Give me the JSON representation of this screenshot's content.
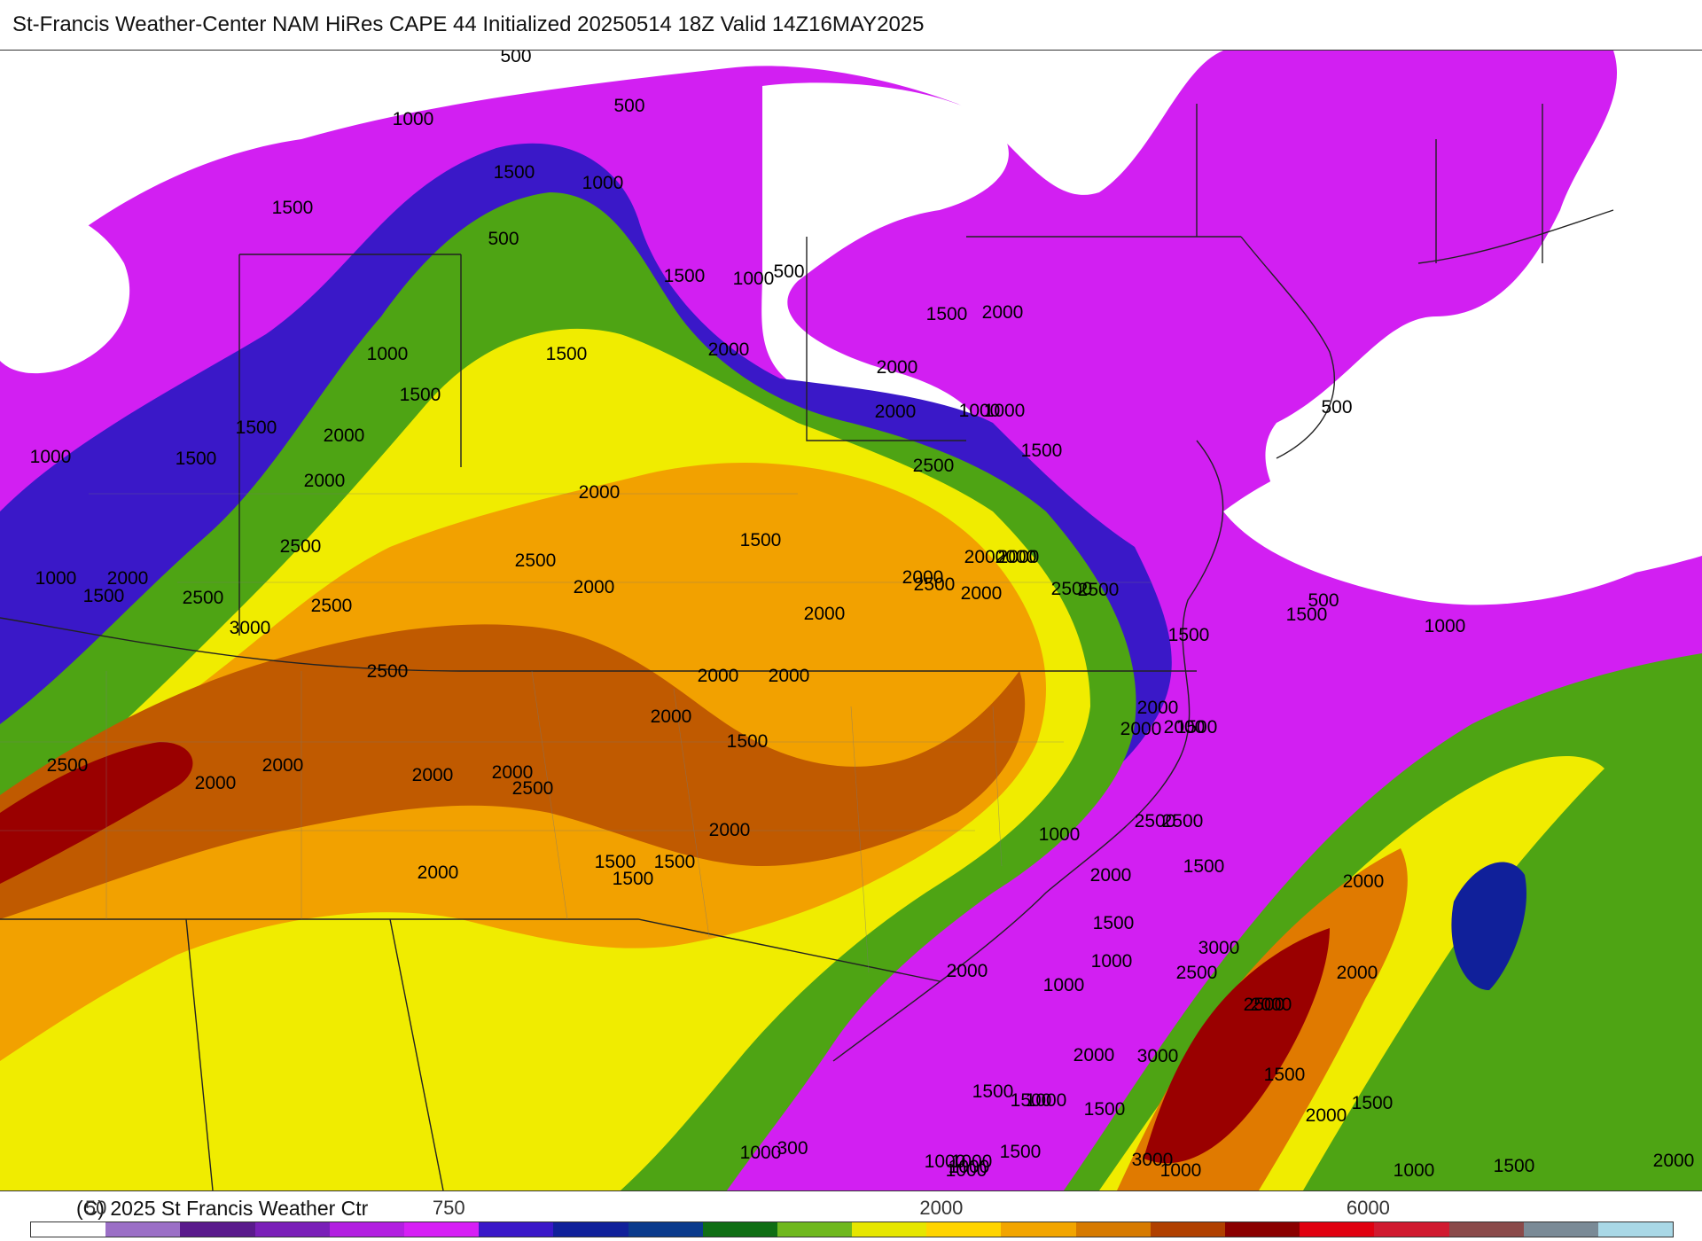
{
  "title": "St-Francis Weather-Center NAM HiRes CAPE  44 Initialized 20250514 18Z Valid 14Z16MAY2025",
  "copyright": "(C) 2025 St Francis Weather Ctr",
  "colorbar": {
    "colors": [
      "#ffffff",
      "#9b6fc6",
      "#5a1a8c",
      "#7a1fb8",
      "#b21fe0",
      "#d61ff5",
      "#3a18c8",
      "#10209a",
      "#0a3a8c",
      "#0f6e14",
      "#6fb81e",
      "#e6e600",
      "#ffd400",
      "#f2a500",
      "#d67a00",
      "#b04000",
      "#8a0000",
      "#e00010",
      "#d01a30",
      "#8a4a4a",
      "#7a8a96",
      "#a9d8e6"
    ],
    "tick_labels": [
      {
        "text": "50",
        "frac": 0.04
      },
      {
        "text": "750",
        "frac": 0.255
      },
      {
        "text": "2000",
        "frac": 0.555
      },
      {
        "text": "6000",
        "frac": 0.815
      }
    ]
  },
  "map": {
    "contour_labels": [
      "500",
      "1000",
      "1500",
      "500",
      "1500",
      "1000",
      "500",
      "1500",
      "1000",
      "500",
      "1500",
      "2000",
      "1000",
      "1500",
      "1500",
      "2000",
      "2000",
      "1000",
      "2000",
      "500",
      "1000",
      "1500",
      "2000",
      "1500",
      "2500",
      "1500",
      "2000",
      "2000",
      "2500",
      "2000",
      "1500",
      "1000",
      "2500",
      "2500",
      "2000",
      "2000",
      "2000",
      "1000",
      "2000",
      "1500",
      "2500",
      "2000",
      "2500",
      "3000",
      "2000",
      "2000",
      "500",
      "1500",
      "2500",
      "2000",
      "1000",
      "2500",
      "1500",
      "2000",
      "2500",
      "2000",
      "2000",
      "2000",
      "1500",
      "2000",
      "2500",
      "2000",
      "2000",
      "2000",
      "2000",
      "2500",
      "2000",
      "1500",
      "2000",
      "1500",
      "1500",
      "1000",
      "2500",
      "2500",
      "2000",
      "1500",
      "2000",
      "3000",
      "2500",
      "2000",
      "1500",
      "2000",
      "1500",
      "3000",
      "2500",
      "2000",
      "1000",
      "1000",
      "1500",
      "2000",
      "2000",
      "1500",
      "1000",
      "1500",
      "1000",
      "1000",
      "1000",
      "1500",
      "3000",
      "1500",
      "1000",
      "300",
      "1000",
      "1000",
      "1500",
      "2000",
      "1500",
      "1000"
    ]
  }
}
